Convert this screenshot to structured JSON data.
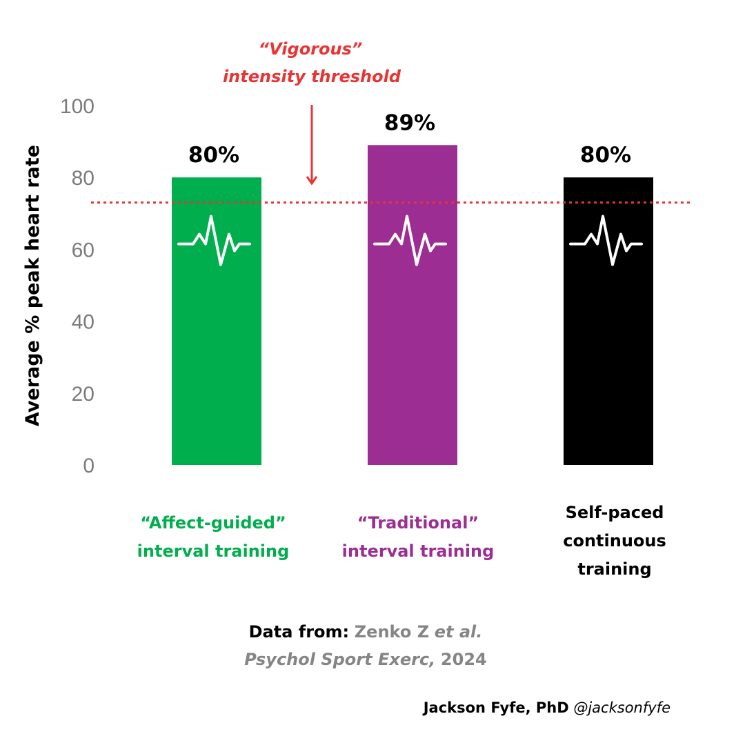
{
  "chart_data": {
    "type": "bar",
    "ylabel": "Average % peak heart rate",
    "ylim": [
      0,
      100
    ],
    "yticks": [
      0,
      20,
      40,
      60,
      80,
      100
    ],
    "categories": [
      {
        "line1": "“Affect-guided”",
        "line2": "interval training",
        "line3": ""
      },
      {
        "line1": "“Traditional”",
        "line2": "interval training",
        "line3": ""
      },
      {
        "line1": "Self-paced",
        "line2": "continuous",
        "line3": "training"
      }
    ],
    "values": [
      80,
      89,
      80
    ],
    "value_labels": [
      "80%",
      "89%",
      "80%"
    ],
    "colors": [
      "#00ae4d",
      "#9c2d93",
      "#000000"
    ],
    "threshold": {
      "value": 73,
      "line1": "“Vigorous”",
      "line2": "intensity threshold",
      "color": "#e93434"
    },
    "bar_icon": "heartbeat-pulse-icon"
  },
  "source": {
    "prefix": "Data from:",
    "author": "Zenko  Z",
    "etal": "et al.",
    "journal": "Psychol Sport Exerc,",
    "year": "2024"
  },
  "credit": {
    "name": "Jackson Fyfe, PhD",
    "handle": "@jacksonfyfe"
  }
}
